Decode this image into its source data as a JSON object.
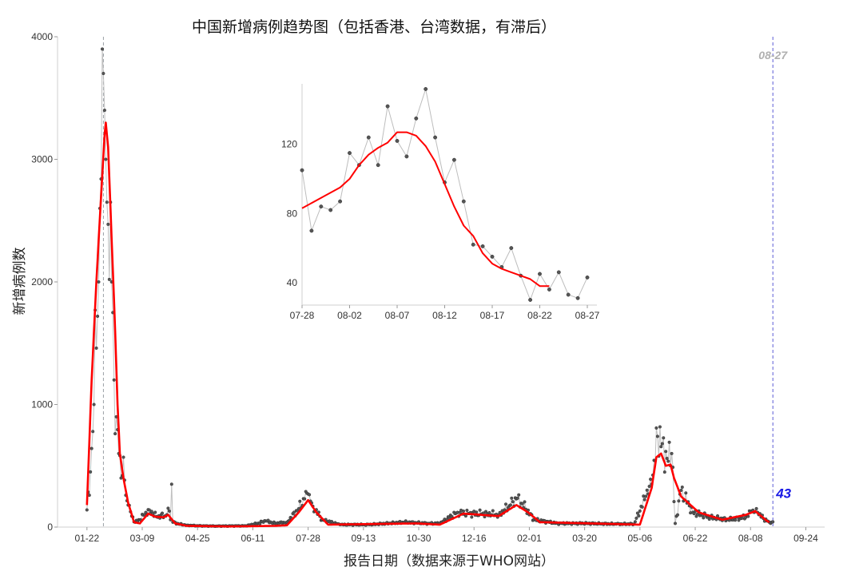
{
  "chart_data": [
    {
      "type": "line",
      "title": "中国新增病例趋势图（包括香港、台湾数据，有滞后）",
      "xlabel": "报告日期（数据来源于WHO网站）",
      "ylabel": "新增病例数",
      "x_tick_labels": [
        "01-22",
        "03-09",
        "04-25",
        "06-11",
        "07-28",
        "09-13",
        "10-30",
        "12-16",
        "02-01",
        "03-20",
        "05-06",
        "06-22",
        "08-08",
        "09-24"
      ],
      "x_tick_day_index": [
        0,
        47,
        94,
        141,
        188,
        235,
        282,
        329,
        376,
        423,
        470,
        517,
        564,
        611
      ],
      "x_range_day_index": [
        -25,
        627
      ],
      "ylim": [
        0,
        4000
      ],
      "y_ticks": [
        0,
        1000,
        2000,
        3000,
        4000
      ],
      "grid": false,
      "reference_lines": [
        {
          "day_index": 14,
          "color": "#9aa0a6",
          "style": "dashed"
        },
        {
          "day_index": 583,
          "label": "08-27",
          "label_color": "#b0b0b0",
          "color": "#5b5bd6",
          "style": "dashed"
        }
      ],
      "last_value_annotation": {
        "text": "43",
        "color": "#1a1ae6"
      },
      "raw_point_color": "#555555",
      "raw_line_color": "#bfbfbf",
      "smooth_color": "#ff0000",
      "raw_keypoints": [
        [
          0,
          140
        ],
        [
          3,
          450
        ],
        [
          5,
          780
        ],
        [
          6,
          1000
        ],
        [
          7,
          1770
        ],
        [
          8,
          1460
        ],
        [
          9,
          1720
        ],
        [
          10,
          2000
        ],
        [
          11,
          2600
        ],
        [
          12,
          2840
        ],
        [
          13,
          3900
        ],
        [
          14,
          3700
        ],
        [
          15,
          3400
        ],
        [
          16,
          3000
        ],
        [
          17,
          2650
        ],
        [
          18,
          2470
        ],
        [
          19,
          2020
        ],
        [
          20,
          2650
        ],
        [
          21,
          2000
        ],
        [
          22,
          1750
        ],
        [
          23,
          1200
        ],
        [
          25,
          900
        ],
        [
          27,
          600
        ],
        [
          29,
          400
        ],
        [
          30,
          420
        ],
        [
          31,
          570
        ],
        [
          33,
          260
        ],
        [
          35,
          180
        ],
        [
          38,
          90
        ],
        [
          41,
          40
        ],
        [
          45,
          60
        ],
        [
          50,
          120
        ],
        [
          53,
          140
        ],
        [
          56,
          110
        ],
        [
          60,
          80
        ],
        [
          63,
          100
        ],
        [
          66,
          90
        ],
        [
          70,
          130
        ],
        [
          71,
          60
        ],
        [
          72,
          350
        ],
        [
          73,
          40
        ],
        [
          78,
          25
        ],
        [
          85,
          15
        ],
        [
          95,
          10
        ],
        [
          110,
          8
        ],
        [
          135,
          10
        ],
        [
          145,
          30
        ],
        [
          152,
          50
        ],
        [
          160,
          30
        ],
        [
          170,
          40
        ],
        [
          180,
          150
        ],
        [
          185,
          230
        ],
        [
          188,
          270
        ],
        [
          192,
          170
        ],
        [
          200,
          60
        ],
        [
          215,
          20
        ],
        [
          240,
          20
        ],
        [
          270,
          40
        ],
        [
          290,
          30
        ],
        [
          300,
          30
        ],
        [
          315,
          120
        ],
        [
          325,
          110
        ],
        [
          340,
          110
        ],
        [
          350,
          100
        ],
        [
          360,
          180
        ],
        [
          365,
          230
        ],
        [
          370,
          190
        ],
        [
          380,
          60
        ],
        [
          400,
          30
        ],
        [
          425,
          30
        ],
        [
          450,
          25
        ],
        [
          465,
          25
        ],
        [
          475,
          250
        ],
        [
          480,
          350
        ],
        [
          485,
          740
        ],
        [
          489,
          680
        ],
        [
          493,
          560
        ],
        [
          497,
          600
        ],
        [
          500,
          30
        ],
        [
          505,
          300
        ],
        [
          515,
          120
        ],
        [
          530,
          80
        ],
        [
          545,
          60
        ],
        [
          560,
          80
        ],
        [
          565,
          130
        ],
        [
          570,
          120
        ],
        [
          575,
          70
        ],
        [
          580,
          40
        ],
        [
          583,
          43
        ]
      ],
      "smooth_keypoints": [
        [
          0,
          180
        ],
        [
          4,
          1200
        ],
        [
          8,
          2000
        ],
        [
          12,
          2700
        ],
        [
          15,
          3200
        ],
        [
          16,
          3300
        ],
        [
          18,
          3100
        ],
        [
          20,
          2600
        ],
        [
          22,
          2100
        ],
        [
          24,
          1600
        ],
        [
          26,
          1000
        ],
        [
          28,
          600
        ],
        [
          31,
          400
        ],
        [
          35,
          200
        ],
        [
          40,
          40
        ],
        [
          45,
          30
        ],
        [
          52,
          110
        ],
        [
          58,
          85
        ],
        [
          65,
          80
        ],
        [
          69,
          100
        ],
        [
          75,
          30
        ],
        [
          85,
          10
        ],
        [
          120,
          5
        ],
        [
          160,
          10
        ],
        [
          170,
          15
        ],
        [
          180,
          120
        ],
        [
          188,
          220
        ],
        [
          195,
          120
        ],
        [
          205,
          20
        ],
        [
          280,
          30
        ],
        [
          300,
          20
        ],
        [
          320,
          110
        ],
        [
          350,
          90
        ],
        [
          365,
          180
        ],
        [
          375,
          120
        ],
        [
          385,
          40
        ],
        [
          470,
          20
        ],
        [
          480,
          320
        ],
        [
          484,
          570
        ],
        [
          488,
          600
        ],
        [
          492,
          500
        ],
        [
          496,
          510
        ],
        [
          499,
          400
        ],
        [
          505,
          250
        ],
        [
          520,
          120
        ],
        [
          540,
          60
        ],
        [
          560,
          100
        ],
        [
          568,
          130
        ],
        [
          578,
          50
        ],
        [
          580,
          40
        ]
      ]
    },
    {
      "type": "line",
      "inset": true,
      "x_tick_labels": [
        "07-28",
        "08-02",
        "08-07",
        "08-12",
        "08-17",
        "08-22",
        "08-27"
      ],
      "x_tick_day_index": [
        0,
        5,
        10,
        15,
        20,
        25,
        30
      ],
      "ylim": [
        27,
        155
      ],
      "y_ticks": [
        40,
        80,
        120
      ],
      "raw_values": [
        105,
        70,
        84,
        82,
        87,
        115,
        108,
        124,
        108,
        142,
        122,
        113,
        135,
        152,
        124,
        98,
        111,
        87,
        62,
        61,
        55,
        49,
        60,
        44,
        30,
        45,
        36,
        46,
        33,
        31,
        43
      ],
      "smooth_values": [
        83,
        86,
        89,
        92,
        95,
        100,
        108,
        114,
        118,
        121,
        127,
        127,
        125,
        119,
        110,
        97,
        84,
        73,
        67,
        57,
        51,
        48,
        46,
        44,
        42,
        38,
        38
      ]
    }
  ]
}
